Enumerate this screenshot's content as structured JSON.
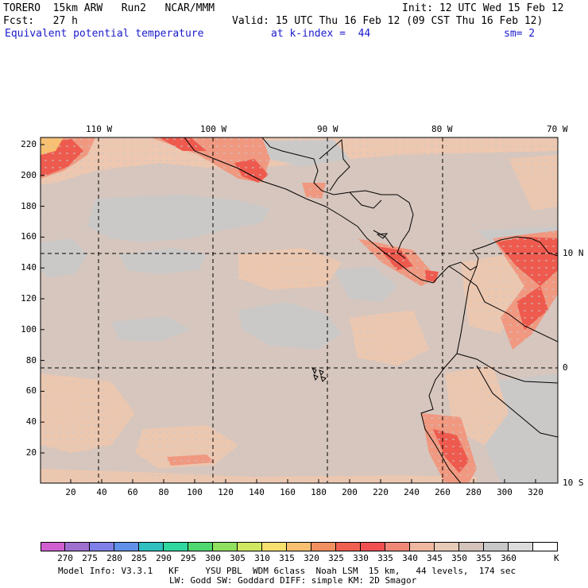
{
  "header": {
    "model": "TORERO  15km ARW   Run2   NCAR/MMM",
    "init": "Init: 12 UTC Wed 15 Feb 12",
    "fcst": "Fcst:   27 h",
    "valid": "Valid: 15 UTC Thu 16 Feb 12 (09 CST Thu 16 Feb 12)",
    "field": "Equivalent potential temperature",
    "level": "at k-index =  44",
    "sm": "sm= 2"
  },
  "map": {
    "lon_labels": [
      "110 W",
      "100 W",
      "90 W",
      "80 W",
      "70 W"
    ],
    "lat_labels": [
      "10 N",
      "0",
      "10 S"
    ],
    "y_ticks": [
      "220",
      "200",
      "180",
      "160",
      "140",
      "120",
      "100",
      "80",
      "60",
      "40",
      "20"
    ],
    "x_ticks": [
      "20",
      "40",
      "60",
      "80",
      "100",
      "120",
      "140",
      "160",
      "180",
      "200",
      "220",
      "240",
      "260",
      "280",
      "300",
      "320"
    ]
  },
  "colorbar": {
    "colors": [
      "#d060d0",
      "#a070d0",
      "#8080e8",
      "#6090e8",
      "#30c0c0",
      "#30d8a0",
      "#50d870",
      "#90e060",
      "#d0e860",
      "#f8e070",
      "#f8c070",
      "#f09060",
      "#f06050",
      "#f05050",
      "#f08878",
      "#f0b8a0",
      "#e8cab8",
      "#d4c4bc",
      "#c8c8c8",
      "#dcdcdc",
      "#ffffff"
    ],
    "labels": [
      "270",
      "275",
      "280",
      "285",
      "290",
      "295",
      "300",
      "305",
      "310",
      "315",
      "320",
      "325",
      "330",
      "335",
      "340",
      "345",
      "350",
      "355",
      "360"
    ],
    "unit": "K"
  },
  "footer": {
    "line1": "Model Info: V3.3.1   KF     YSU PBL  WDM 6class  Noah LSM  15 km,   44 levels,  174 sec",
    "line2": "LW: Godd SW: Goddard DIFF: simple KM: 2D Smagor"
  }
}
